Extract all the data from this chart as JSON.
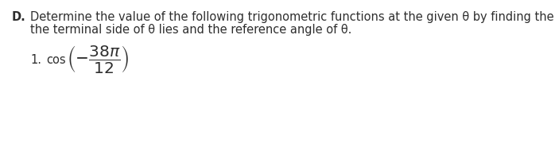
{
  "background_color": "#ffffff",
  "text_color": "#2e2e2e",
  "font_size_main": 10.5,
  "font_size_math": 14.5,
  "line1_D": "D.",
  "line1_rest": "  Determine the value of the following trigonometric functions at the given θ by finding the quadrant where",
  "line2": "    the terminal side of θ lies and the reference angle of θ.",
  "item1_label": "1.   cos",
  "math_expr": "$\\left(-\\dfrac{38\\pi}{12}\\right)$",
  "fig_width": 6.98,
  "fig_height": 1.95,
  "dpi": 100
}
